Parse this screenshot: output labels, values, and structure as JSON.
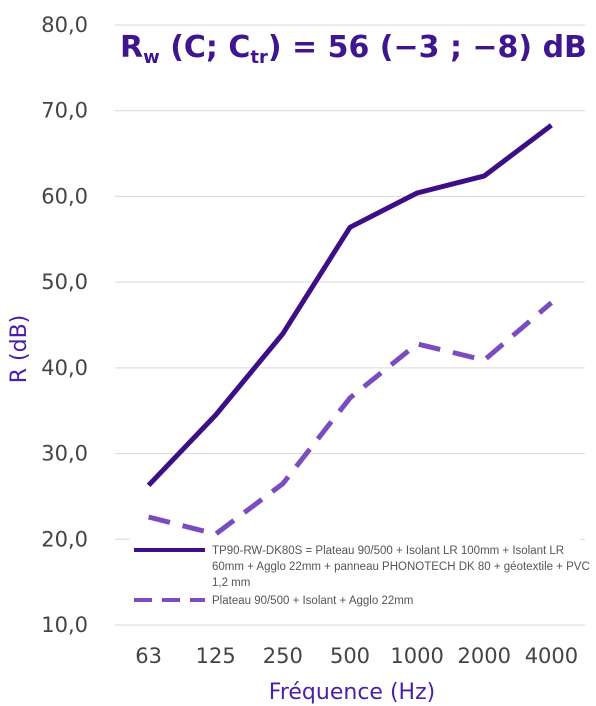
{
  "chart_data": {
    "type": "line",
    "title": {
      "main": "R",
      "sub_w": "w",
      "open": " (C; C",
      "sub_tr": "tr",
      "rest": ") = 56 (−3 ; −8) dB"
    },
    "categories": [
      "63",
      "125",
      "250",
      "500",
      "1000",
      "2000",
      "4000"
    ],
    "xlabel": "Fréquence (Hz)",
    "ylabel": "R (dB)",
    "ylim": [
      10,
      80
    ],
    "yticks": [
      "10,0",
      "20,0",
      "30,0",
      "40,0",
      "50,0",
      "60,0",
      "70,0",
      "80,0"
    ],
    "grid": true,
    "legend_position": "bottom-left",
    "series": [
      {
        "name": "TP90-RW-DK80S = Plateau 90/500 + Isolant LR 100mm + Isolant LR 60mm + Agglo 22mm + panneau PHONOTECH DK 80 + géotextile + PVC 1,2 mm",
        "name_lines": [
          "TP90-RW-DK80S = Plateau 90/500 + Isolant LR 100mm + Isolant LR",
          "60mm + Agglo 22mm + panneau PHONOTECH DK 80 + géotextile + PVC",
          "1,2 mm"
        ],
        "values": [
          26.3,
          34.5,
          44.0,
          56.4,
          60.4,
          62.4,
          68.3
        ],
        "style": "solid",
        "color": "#3c0f87"
      },
      {
        "name": "Plateau 90/500 + Isolant + Agglo 22mm",
        "name_lines": [
          "Plateau 90/500 + Isolant + Agglo 22mm"
        ],
        "values": [
          22.6,
          20.6,
          26.5,
          36.5,
          42.8,
          40.9,
          47.6
        ],
        "style": "dashed",
        "color": "#7b4bc0"
      }
    ]
  }
}
